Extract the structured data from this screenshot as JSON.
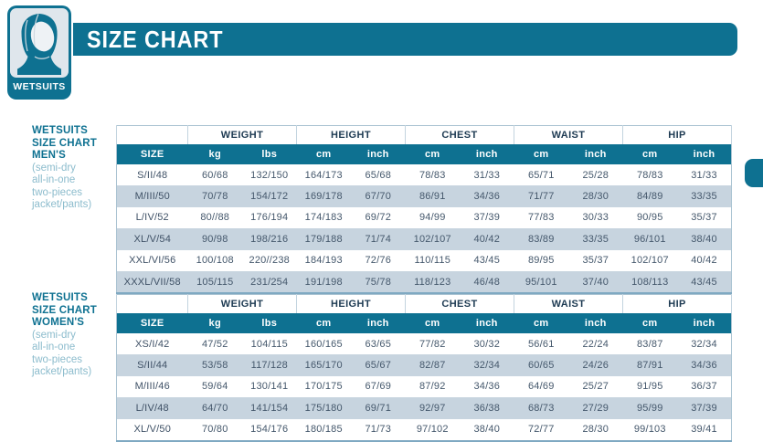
{
  "badge": {
    "label": "WETSUITS"
  },
  "title": "SIZE CHART",
  "colors": {
    "accent_teal": "#0e7191",
    "row_alt": "#c7d4df",
    "header_text": "#1d3a52",
    "data_text": "#45586c",
    "label_bold": "#0e7191",
    "label_light": "#8cbccd",
    "badge_panel": "#dfe6ec"
  },
  "icons": {
    "badge_icon": "wetsuit-hood-icon"
  },
  "tables": [
    {
      "label_lines": [
        "WETSUITS",
        "SIZE CHART",
        "MEN'S"
      ],
      "sublabel_lines": [
        "(semi-dry",
        "all-in-one",
        "two-pieces",
        "jacket/pants)"
      ],
      "group_headers": [
        "WEIGHT",
        "HEIGHT",
        "CHEST",
        "WAIST",
        "HIP"
      ],
      "col_headers": [
        "SIZE",
        "kg",
        "lbs",
        "cm",
        "inch",
        "cm",
        "inch",
        "cm",
        "inch",
        "cm",
        "inch"
      ],
      "rows": [
        [
          "S/II/48",
          "60/68",
          "132/150",
          "164/173",
          "65/68",
          "78/83",
          "31/33",
          "65/71",
          "25/28",
          "78/83",
          "31/33"
        ],
        [
          "M/III/50",
          "70/78",
          "154/172",
          "169/178",
          "67/70",
          "86/91",
          "34/36",
          "71/77",
          "28/30",
          "84/89",
          "33/35"
        ],
        [
          "L/IV/52",
          "80//88",
          "176/194",
          "174/183",
          "69/72",
          "94/99",
          "37/39",
          "77/83",
          "30/33",
          "90/95",
          "35/37"
        ],
        [
          "XL/V/54",
          "90/98",
          "198/216",
          "179/188",
          "71/74",
          "102/107",
          "40/42",
          "83/89",
          "33/35",
          "96/101",
          "38/40"
        ],
        [
          "XXL/VI/56",
          "100/108",
          "220//238",
          "184/193",
          "72/76",
          "110/115",
          "43/45",
          "89/95",
          "35/37",
          "102/107",
          "40/42"
        ],
        [
          "XXXL/VII/58",
          "105/115",
          "231/254",
          "191/198",
          "75/78",
          "118/123",
          "46/48",
          "95/101",
          "37/40",
          "108/113",
          "43/45"
        ]
      ]
    },
    {
      "label_lines": [
        "WETSUITS",
        "SIZE CHART",
        "WOMEN'S"
      ],
      "sublabel_lines": [
        "(semi-dry",
        "all-in-one",
        "two-pieces",
        "jacket/pants)"
      ],
      "group_headers": [
        "WEIGHT",
        "HEIGHT",
        "CHEST",
        "WAIST",
        "HIP"
      ],
      "col_headers": [
        "SIZE",
        "kg",
        "lbs",
        "cm",
        "inch",
        "cm",
        "inch",
        "cm",
        "inch",
        "cm",
        "inch"
      ],
      "rows": [
        [
          "XS/I/42",
          "47/52",
          "104/115",
          "160/165",
          "63/65",
          "77/82",
          "30/32",
          "56/61",
          "22/24",
          "83/87",
          "32/34"
        ],
        [
          "S/II/44",
          "53/58",
          "117/128",
          "165/170",
          "65/67",
          "82/87",
          "32/34",
          "60/65",
          "24/26",
          "87/91",
          "34/36"
        ],
        [
          "M/III/46",
          "59/64",
          "130/141",
          "170/175",
          "67/69",
          "87/92",
          "34/36",
          "64/69",
          "25/27",
          "91/95",
          "36/37"
        ],
        [
          "L/IV/48",
          "64/70",
          "141/154",
          "175/180",
          "69/71",
          "92/97",
          "36/38",
          "68/73",
          "27/29",
          "95/99",
          "37/39"
        ],
        [
          "XL/V/50",
          "70/80",
          "154/176",
          "180/185",
          "71/73",
          "97/102",
          "38/40",
          "72/77",
          "28/30",
          "99/103",
          "39/41"
        ]
      ]
    }
  ]
}
